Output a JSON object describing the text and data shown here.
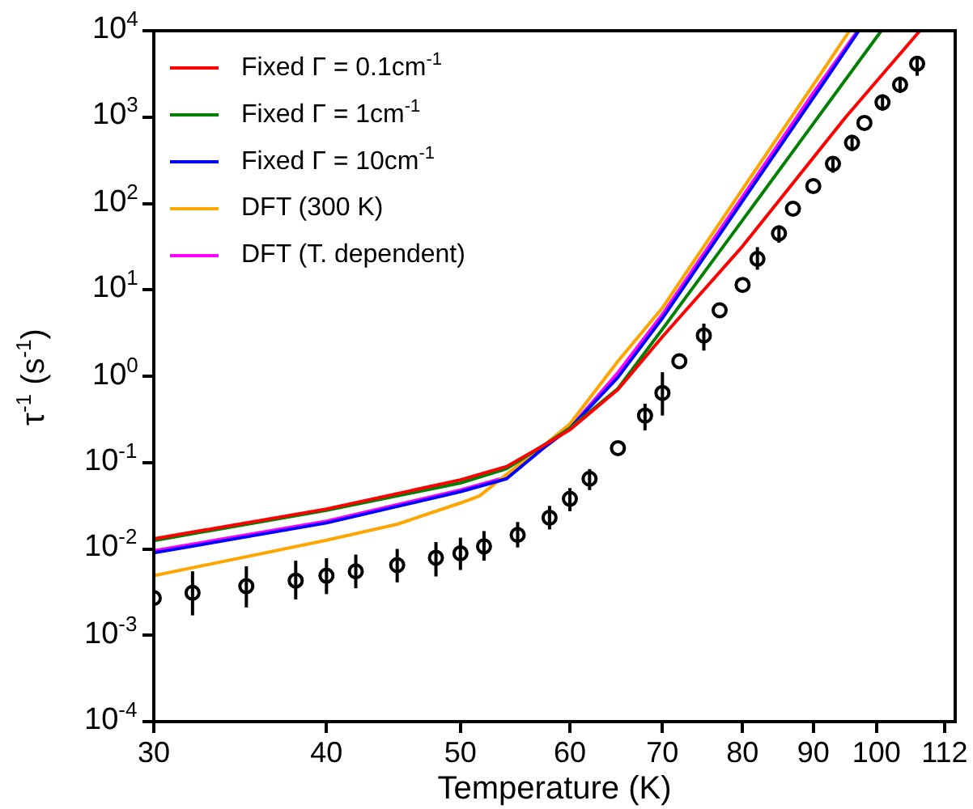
{
  "chart_data": {
    "type": "line",
    "xlabel": "Temperature (K)",
    "ylabel": "τ$^{-1}$ (s$^{-1}$)",
    "log": "xy",
    "grid": false,
    "legend": "top left",
    "xlim": [
      30,
      114
    ],
    "xticks": [
      30,
      40,
      50,
      60,
      70,
      80,
      90,
      100,
      112
    ],
    "ylim": [
      0.0001,
      10000
    ],
    "yticks": [
      {
        "value": 0.0001,
        "label": "10$^{-4}$"
      },
      {
        "value": 0.001,
        "label": "10$^{-3}$"
      },
      {
        "value": 0.01,
        "label": "10$^{-2}$"
      },
      {
        "value": 0.1,
        "label": "10$^{-1}$"
      },
      {
        "value": 1,
        "label": "10$^{0}$"
      },
      {
        "value": 10,
        "label": "10$^{1}$"
      },
      {
        "value": 100,
        "label": "10$^{2}$"
      },
      {
        "value": 1000,
        "label": "10$^{3}$"
      },
      {
        "value": 10000,
        "label": "10$^{4}$"
      }
    ],
    "series": [
      {
        "name": "Fixed Γ = 0.1cm$^{-1}$",
        "color": "#ff0000",
        "x": [
          30,
          40,
          50,
          54,
          57.5,
          60,
          65,
          70,
          80,
          95,
          107.5
        ],
        "values": [
          0.0131,
          0.029,
          0.063,
          0.09,
          0.16,
          0.24,
          0.7,
          2.86,
          32,
          1000,
          10000
        ]
      },
      {
        "name": "Fixed Γ = 1cm$^{-1}$",
        "color": "#008000",
        "x": [
          30,
          40,
          50,
          54,
          57.5,
          60,
          65,
          70,
          80,
          90,
          100.8
        ],
        "values": [
          0.0125,
          0.028,
          0.058,
          0.085,
          0.16,
          0.25,
          0.72,
          3.5,
          64,
          840,
          10000
        ]
      },
      {
        "name": "Fixed Γ = 10cm$^{-1}$",
        "color": "#0000ff",
        "x": [
          30,
          40,
          50,
          54,
          57.5,
          60,
          65,
          70,
          80,
          90,
          97.1
        ],
        "values": [
          0.009,
          0.02,
          0.046,
          0.065,
          0.15,
          0.25,
          0.97,
          4.7,
          107,
          1670,
          10000
        ]
      },
      {
        "name": "DFT (300 K)",
        "color": "#ffa500",
        "x": [
          30,
          40,
          45,
          50,
          51.6,
          54,
          57.5,
          60,
          65,
          70,
          80,
          90,
          95.6
        ],
        "values": [
          0.0049,
          0.0126,
          0.0193,
          0.034,
          0.041,
          0.073,
          0.16,
          0.28,
          1.49,
          6.2,
          147,
          2360,
          10000
        ]
      },
      {
        "name": "DFT (T. dependent)",
        "color": "#ff00ff",
        "x": [
          30,
          40,
          50,
          54,
          57.5,
          60,
          65,
          70,
          80,
          90,
          96.9
        ],
        "values": [
          0.0095,
          0.021,
          0.048,
          0.068,
          0.15,
          0.25,
          1.1,
          5.2,
          120,
          1900,
          10000
        ]
      },
      {
        "type": "scatter",
        "marker": "circle",
        "color": "#000000",
        "x": [
          30,
          32,
          35,
          38,
          40,
          42,
          45,
          48,
          50,
          52,
          55,
          58,
          60,
          62,
          65,
          68,
          70,
          72,
          75,
          77,
          80,
          82,
          85,
          87,
          90,
          93,
          96,
          98,
          101,
          104,
          107
        ],
        "values": [
          0.0027,
          0.0031,
          0.0037,
          0.0043,
          0.0049,
          0.0055,
          0.0065,
          0.0079,
          0.0089,
          0.0107,
          0.0145,
          0.023,
          0.038,
          0.065,
          0.147,
          0.35,
          0.64,
          1.49,
          2.96,
          5.8,
          11.4,
          22.8,
          45,
          87,
          159,
          288,
          504,
          857,
          1480,
          2370,
          4150
        ],
        "errors": [
          null,
          [
            0.0017,
            0.0055
          ],
          [
            0.0021,
            0.0063
          ],
          [
            0.0026,
            0.0073
          ],
          [
            0.003,
            0.0078
          ],
          [
            0.0035,
            0.0086
          ],
          [
            0.0041,
            0.01
          ],
          [
            0.0048,
            0.012
          ],
          [
            0.0057,
            0.0135
          ],
          [
            0.0073,
            0.0161
          ],
          [
            0.0104,
            0.0205
          ],
          [
            0.0168,
            0.0315
          ],
          [
            0.0273,
            0.0506
          ],
          [
            0.048,
            0.084
          ],
          null,
          [
            0.236,
            0.48
          ],
          [
            0.35,
            1.11
          ],
          null,
          [
            1.98,
            4.06
          ],
          null,
          null,
          [
            17.1,
            31.2
          ],
          [
            35.1,
            55.6
          ],
          null,
          null,
          [
            227,
            349
          ],
          [
            405,
            622
          ],
          null,
          [
            1188,
            1828
          ],
          [
            1910,
            2940
          ],
          [
            3010,
            4990
          ]
        ]
      }
    ]
  }
}
